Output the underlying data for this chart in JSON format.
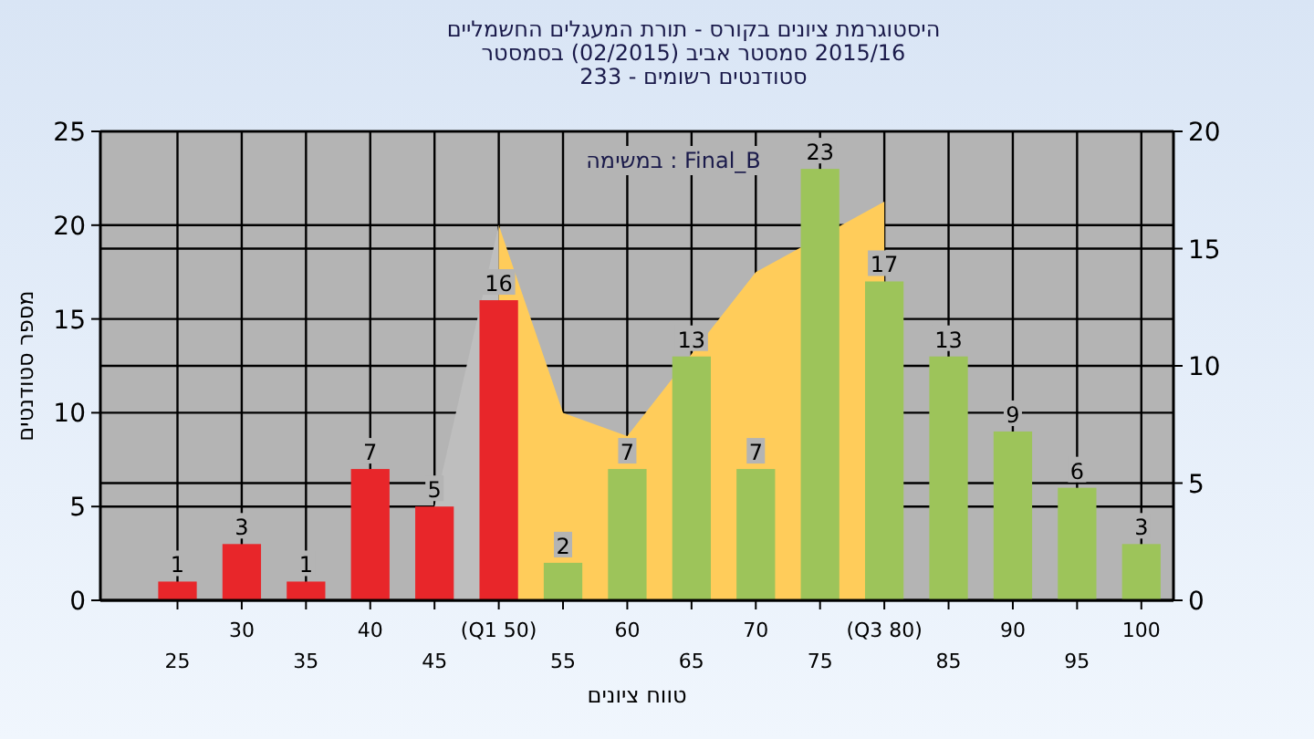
{
  "chart_data": {
    "type": "bar",
    "title": "היסטוגרמת ציונים בקורס - תורת המעגלים החשמליים",
    "subtitle": "2015/16 סמסטר אביב  (02/2015)  בסמסטר\nסטודנטים רשומים - 233",
    "xlabel": "טווח ציונים",
    "ylabel": "מספר סטודנטים",
    "annotations": [
      "Final_B : במשימה"
    ],
    "categories": [
      "25",
      "30",
      "35",
      "40",
      "45",
      "(Q1 50)",
      "55",
      "60",
      "65",
      "70",
      "75",
      "(Q3 80)",
      "85",
      "90",
      "95",
      "100"
    ],
    "series": [
      {
        "type": "area",
        "axis": "y2",
        "color": "#bebebe",
        "values": [
          null,
          null,
          null,
          null,
          4,
          16,
          null,
          null,
          null,
          null,
          null,
          null,
          null,
          null,
          null,
          null
        ]
      },
      {
        "type": "area",
        "axis": "y2",
        "color": "#ffcc5a",
        "values": [
          null,
          null,
          null,
          null,
          null,
          16,
          8,
          7,
          null,
          14,
          null,
          17,
          null,
          null,
          null,
          null
        ]
      },
      {
        "colors": [
          "#e8262a",
          "#e8262a",
          "#e8262a",
          "#e8262a",
          "#e8262a",
          "#e8262a",
          "#9dc45a",
          "#9dc45a",
          "#9dc45a",
          "#9dc45a",
          "#9dc45a",
          "#9dc45a",
          "#9dc45a",
          "#9dc45a",
          "#9dc45a",
          "#9dc45a"
        ],
        "values": [
          1,
          3,
          1,
          7,
          5,
          16,
          2,
          7,
          13,
          7,
          23,
          17,
          13,
          9,
          6,
          3
        ],
        "value_labels": [
          "1",
          "3",
          "1",
          "7",
          "5",
          "16",
          "2",
          "7",
          "13",
          "7",
          "23",
          "17",
          "13",
          "9",
          "6",
          "3"
        ]
      }
    ],
    "ylim": [
      0,
      25
    ],
    "yticks": [
      0,
      5,
      10,
      15,
      20,
      25
    ],
    "y2lim": [
      0,
      20
    ],
    "y2ticks": [
      0,
      5,
      10,
      15,
      20
    ],
    "grid": true
  }
}
